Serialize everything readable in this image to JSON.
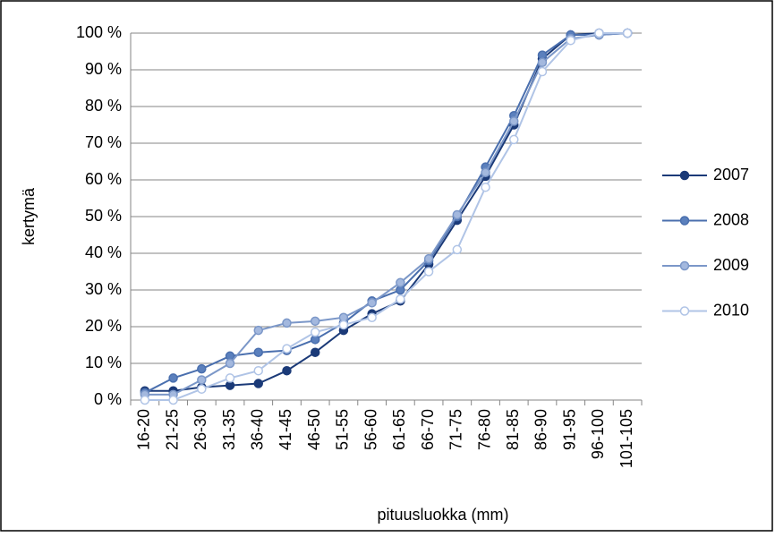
{
  "chart_data": {
    "type": "line",
    "x_label": "pituusluokka (mm)",
    "y_label": "kertymä",
    "categories": [
      "16-20",
      "21-25",
      "26-30",
      "31-35",
      "36-40",
      "41-45",
      "46-50",
      "51-55",
      "56-60",
      "61-65",
      "66-70",
      "71-75",
      "76-80",
      "81-85",
      "86-90",
      "91-95",
      "96-100",
      "101-105"
    ],
    "series": [
      {
        "name": "2007",
        "color": "#1b3a78",
        "marker_fill": "#1b3a78",
        "values": [
          2.5,
          2.5,
          3.5,
          4,
          4.5,
          8,
          13,
          19,
          23.5,
          27,
          37,
          49,
          61,
          75,
          93,
          99.5,
          100,
          100
        ]
      },
      {
        "name": "2008",
        "color": "#4a6fae",
        "marker_fill": "#5b80bd",
        "values": [
          2,
          6,
          8.5,
          12,
          13,
          13.5,
          16.5,
          21,
          27,
          30,
          38,
          50,
          63.5,
          77.5,
          94,
          99.5,
          99.5,
          100
        ]
      },
      {
        "name": "2009",
        "color": "#7b97c8",
        "marker_fill": "#a3b8de",
        "values": [
          1.5,
          1.5,
          5.5,
          10,
          19,
          21,
          21.5,
          22.5,
          26.5,
          32,
          38.5,
          50.5,
          62,
          76,
          92,
          98.5,
          99.5,
          100
        ]
      },
      {
        "name": "2010",
        "color": "#b0c4e6",
        "marker_fill": "#ffffff",
        "values": [
          0,
          0,
          3,
          6,
          8,
          14,
          18.5,
          20.5,
          22.5,
          27.5,
          35,
          41,
          58,
          71,
          89.5,
          98,
          100,
          100
        ]
      }
    ],
    "ylim": [
      0,
      100
    ],
    "yticks": [
      {
        "value": 0,
        "label": "0 %"
      },
      {
        "value": 10,
        "label": "10 %"
      },
      {
        "value": 20,
        "label": "20 %"
      },
      {
        "value": 30,
        "label": "30 %"
      },
      {
        "value": 40,
        "label": "40 %"
      },
      {
        "value": 50,
        "label": "50 %"
      },
      {
        "value": 60,
        "label": "60 %"
      },
      {
        "value": 70,
        "label": "70 %"
      },
      {
        "value": 80,
        "label": "80 %"
      },
      {
        "value": 90,
        "label": "90 %"
      },
      {
        "value": 100,
        "label": "100 %"
      }
    ],
    "grid": true,
    "legend": "right"
  }
}
